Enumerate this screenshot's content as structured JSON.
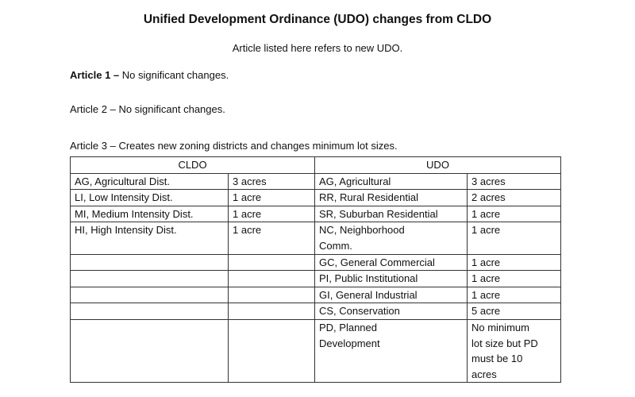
{
  "header": {
    "title": "Unified Development Ordinance (UDO) changes from CLDO",
    "subtitle": "Article listed here refers to new UDO."
  },
  "articles": [
    {
      "label": "Article 1 –",
      "text": "No significant changes."
    },
    {
      "label": "Article 2 –",
      "text": "No significant changes."
    },
    {
      "label": "Article 3 –",
      "text": "Creates new zoning districts and changes minimum lot sizes."
    }
  ],
  "table": {
    "header": [
      "CLDO",
      "UDO"
    ],
    "rows": [
      [
        "AG, Agricultural Dist.",
        "3 acres",
        "AG, Agricultural",
        "3 acres"
      ],
      [
        "LI, Low Intensity Dist.",
        "1 acre",
        "RR, Rural Residential",
        "2 acres"
      ],
      [
        "MI, Medium Intensity Dist.",
        "1 acre",
        "SR, Suburban Residential",
        "1 acre"
      ],
      [
        "HI, High Intensity Dist.",
        "1 acre",
        [
          "NC, Neighborhood",
          "Comm."
        ],
        "1 acre"
      ],
      [
        null,
        null,
        "GC, General Commercial",
        "1 acre"
      ],
      [
        null,
        null,
        "PI, Public Institutional",
        "1 acre"
      ],
      [
        null,
        null,
        "GI, General Industrial",
        "1 acre"
      ],
      [
        null,
        null,
        "CS, Conservation",
        "5 acre"
      ],
      [
        null,
        null,
        [
          "PD, Planned",
          "Development"
        ],
        [
          "No minimum",
          "lot size but PD",
          "must be 10",
          "acres"
        ]
      ]
    ]
  }
}
